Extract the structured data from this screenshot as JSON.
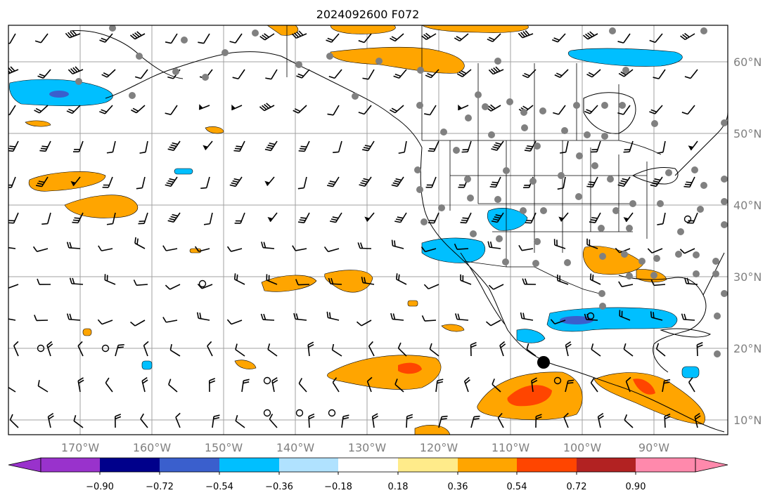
{
  "title": "2024092600 F072",
  "lon_ticks": [
    "170°W",
    "160°W",
    "150°W",
    "140°W",
    "130°W",
    "120°W",
    "110°W",
    "100°W",
    "90°W"
  ],
  "lat_ticks": [
    "60°N",
    "50°N",
    "40°N",
    "30°N",
    "20°N",
    "10°N"
  ],
  "colorbar": {
    "labels": [
      "−0.90",
      "−0.72",
      "−0.54",
      "−0.36",
      "−0.18",
      "0.18",
      "0.36",
      "0.54",
      "0.72",
      "0.90"
    ],
    "colors": [
      "#9932cc",
      "#00008b",
      "#3a5fcd",
      "#00bfff",
      "#b0e2ff",
      "#ffffff",
      "#ffeb8a",
      "#ffa500",
      "#ff4500",
      "#b22222",
      "#ff89ac"
    ]
  },
  "map_colors": {
    "ocean": "#ffffff",
    "grid": "#a0a0a0",
    "station_marker": "#808080",
    "positive_light": "#ffa500",
    "positive_strong": "#ff4500",
    "negative_light": "#00bfff",
    "negative_strong": "#3a5fcd"
  }
}
